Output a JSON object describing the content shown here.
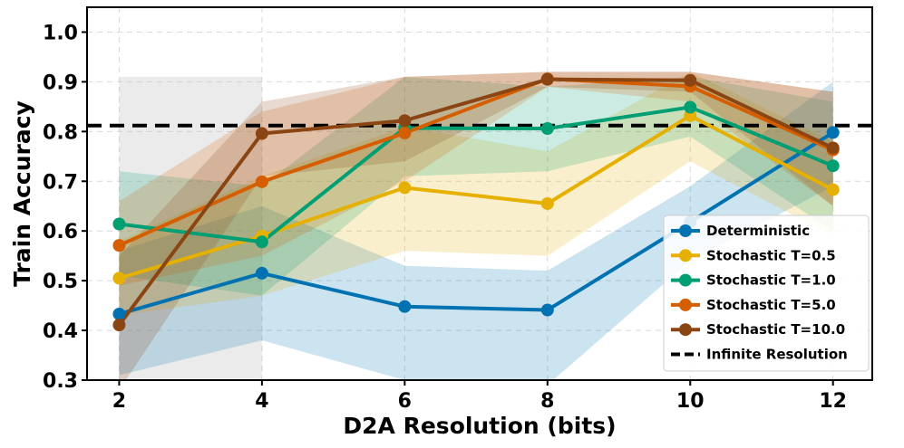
{
  "chart_data": {
    "type": "line",
    "title": "",
    "xlabel": "D2A Resolution (bits)",
    "ylabel": "Train Accuracy",
    "x": [
      2,
      4,
      6,
      8,
      10,
      12
    ],
    "xlim": [
      1.55,
      12.55
    ],
    "ylim": [
      0.3,
      1.05
    ],
    "yticks": [
      0.3,
      0.4,
      0.5,
      0.6,
      0.7,
      0.8,
      0.9,
      1.0
    ],
    "ytick_labels": [
      "0.3",
      "0.4",
      "0.5",
      "0.6",
      "0.7",
      "0.8",
      "0.9",
      "1.0"
    ],
    "xtick_labels": [
      "2",
      "4",
      "6",
      "8",
      "10",
      "12"
    ],
    "grid": true,
    "legend_position": "lower-right",
    "series": [
      {
        "name": "Deterministic",
        "color": "#0072b2",
        "values": [
          0.433,
          0.515,
          0.448,
          0.441,
          0.618,
          0.798
        ],
        "lower": [
          0.31,
          0.38,
          0.3,
          0.29,
          0.54,
          0.69
        ],
        "upper": [
          0.56,
          0.65,
          0.53,
          0.52,
          0.69,
          0.9
        ]
      },
      {
        "name": "Stochastic T=0.5",
        "color": "#e6b000",
        "values": [
          0.505,
          0.59,
          0.687,
          0.655,
          0.832,
          0.683
        ],
        "lower": [
          0.43,
          0.47,
          0.56,
          0.55,
          0.74,
          0.59
        ],
        "upper": [
          0.58,
          0.71,
          0.81,
          0.76,
          0.92,
          0.78
        ]
      },
      {
        "name": "Stochastic T=1.0",
        "color": "#009e73",
        "values": [
          0.614,
          0.578,
          0.807,
          0.806,
          0.849,
          0.731
        ],
        "lower": [
          0.51,
          0.47,
          0.71,
          0.72,
          0.79,
          0.6
        ],
        "upper": [
          0.72,
          0.69,
          0.91,
          0.89,
          0.91,
          0.86
        ]
      },
      {
        "name": "Stochastic T=5.0",
        "color": "#d55e00",
        "values": [
          0.571,
          0.699,
          0.797,
          0.906,
          0.891,
          0.763
        ],
        "lower": [
          0.49,
          0.55,
          0.7,
          0.89,
          0.86,
          0.65
        ],
        "upper": [
          0.66,
          0.84,
          0.91,
          0.92,
          0.92,
          0.88
        ]
      },
      {
        "name": "Stochastic T=10.0",
        "color": "#8b4513",
        "values": [
          0.411,
          0.796,
          0.822,
          0.905,
          0.903,
          0.767
        ],
        "lower": [
          0.28,
          0.71,
          0.74,
          0.89,
          0.88,
          0.65
        ],
        "upper": [
          0.55,
          0.86,
          0.91,
          0.92,
          0.92,
          0.88
        ]
      }
    ],
    "reference_line": {
      "name": "Infinite Resolution",
      "value": 0.812,
      "color": "#000000",
      "style": "dashed"
    },
    "gray_band": {
      "lower": 0.3,
      "upper": 0.91,
      "x_range": [
        2,
        4
      ]
    }
  }
}
